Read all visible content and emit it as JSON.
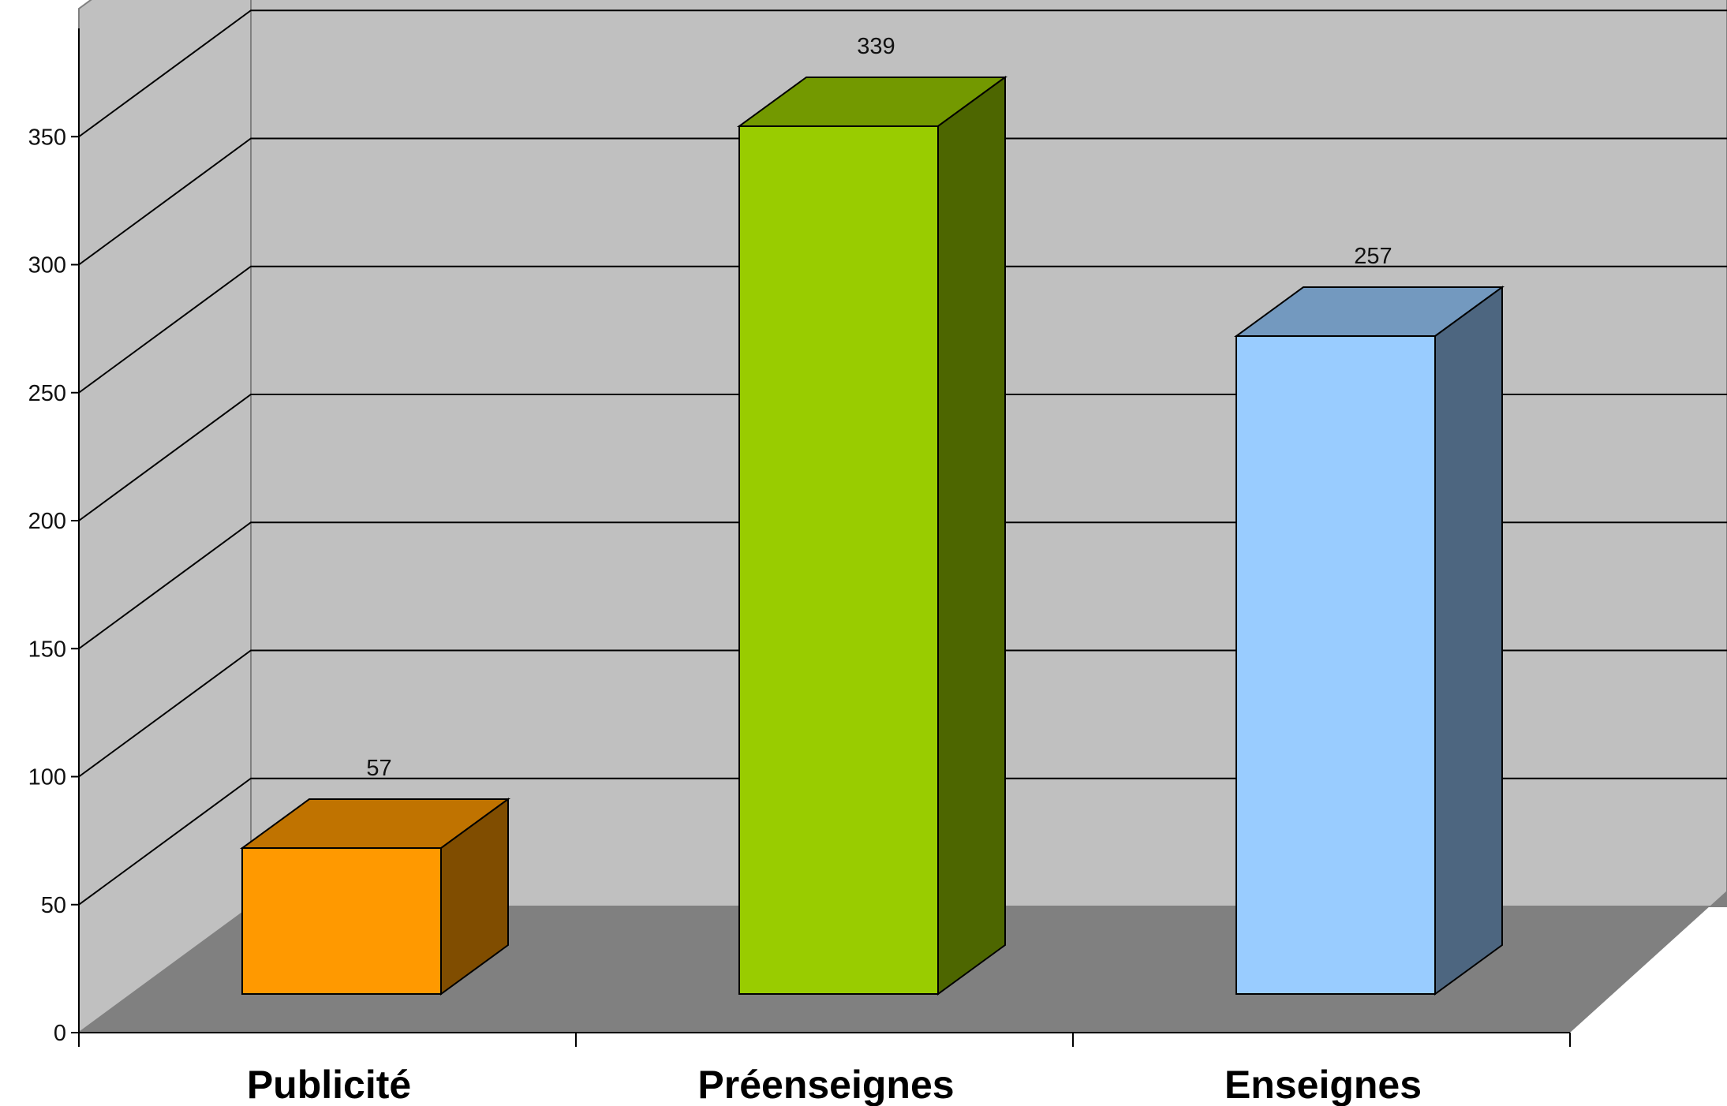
{
  "chart_data": {
    "type": "bar",
    "title": "",
    "xlabel": "",
    "ylabel": "",
    "categories": [
      "Publicité",
      "Préenseignes",
      "Enseignes"
    ],
    "values": [
      57,
      339,
      257
    ],
    "ylim": [
      0,
      350
    ],
    "yticks": [
      0,
      50,
      100,
      150,
      200,
      250,
      300,
      350
    ],
    "data_labels": [
      "57",
      "339",
      "257"
    ],
    "grid": true,
    "legend": "none",
    "style": "3d",
    "colors": {
      "bars": [
        "#FF9900",
        "#99CC00",
        "#99CCFF"
      ],
      "bar_tops": [
        "#C07300",
        "#739900",
        "#7399BF"
      ],
      "bar_sides": [
        "#804D00",
        "#4D6600",
        "#4D6680"
      ],
      "back_wall": "#C0C0C0",
      "side_wall": "#C0C0C0",
      "floor": "#808080",
      "grid": "#000000"
    }
  }
}
